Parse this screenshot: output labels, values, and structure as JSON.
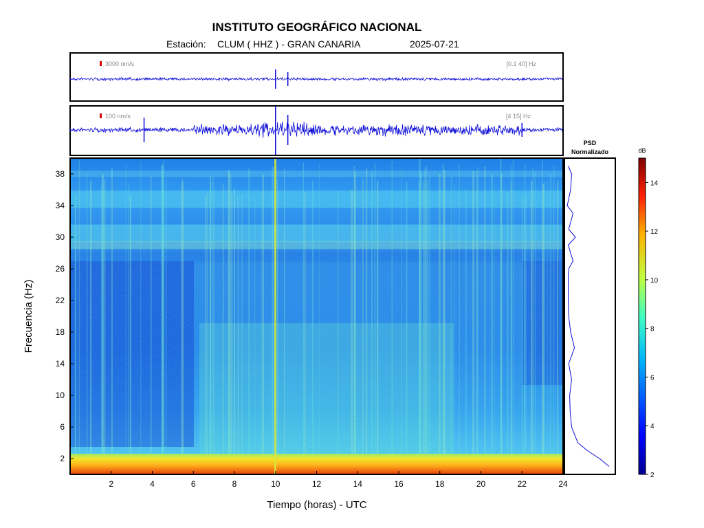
{
  "header": {
    "title": "INSTITUTO GEOGRÁFICO NACIONAL",
    "station_prefix": "Estación:",
    "station": "CLUM ( HHZ ) - GRAN CANARIA",
    "date": "2025-07-21"
  },
  "colors": {
    "trace": "#0b0bd8",
    "scale_marker": "#d40000",
    "frame": "#000000"
  },
  "chart_data": [
    {
      "type": "line",
      "panel": "seismogram-broadband",
      "scale_label": "3000 nm/s",
      "band_label": "[0.1 40] Hz",
      "x_unit": "hours UTC",
      "xlim": [
        0,
        24
      ],
      "events_hours": [
        10.0,
        10.6
      ]
    },
    {
      "type": "line",
      "panel": "seismogram-filtered",
      "scale_label": "100 nm/s",
      "band_label": "[4 15] Hz",
      "x_unit": "hours UTC",
      "xlim": [
        0,
        24
      ],
      "events_hours": [
        3.6,
        10.0,
        10.6,
        22.0
      ]
    },
    {
      "type": "heatmap",
      "panel": "spectrogram",
      "xlabel": "Tiempo (horas) - UTC",
      "ylabel": "Frecuencia  (Hz)",
      "xlim": [
        0,
        24
      ],
      "ylim": [
        0,
        40
      ],
      "xticks": [
        2,
        4,
        6,
        8,
        10,
        12,
        14,
        16,
        18,
        20,
        22,
        24
      ],
      "yticks": [
        2,
        6,
        10,
        14,
        18,
        22,
        26,
        30,
        34,
        38
      ],
      "colorbar": {
        "label": "dB",
        "range": [
          2,
          15
        ],
        "ticks": [
          2,
          4,
          6,
          8,
          10,
          12,
          14
        ]
      }
    },
    {
      "type": "line",
      "panel": "psd",
      "title_line1": "PSD",
      "title_line2": "Normalizado",
      "x": [
        0.9,
        0.7,
        0.45,
        0.25,
        0.12,
        0.09,
        0.08,
        0.12,
        0.06,
        0.18,
        0.1,
        0.06,
        0.05,
        0.05,
        0.05,
        0.06,
        0.15,
        0.05,
        0.2,
        0.06,
        0.15,
        0.03,
        0.1,
        0.12,
        0.05
      ],
      "y": [
        1,
        2,
        3,
        4,
        6,
        8,
        10,
        12,
        14,
        16,
        18,
        20,
        22,
        24,
        25,
        26,
        27,
        29,
        30,
        31,
        33,
        34,
        36,
        38,
        39
      ]
    }
  ]
}
